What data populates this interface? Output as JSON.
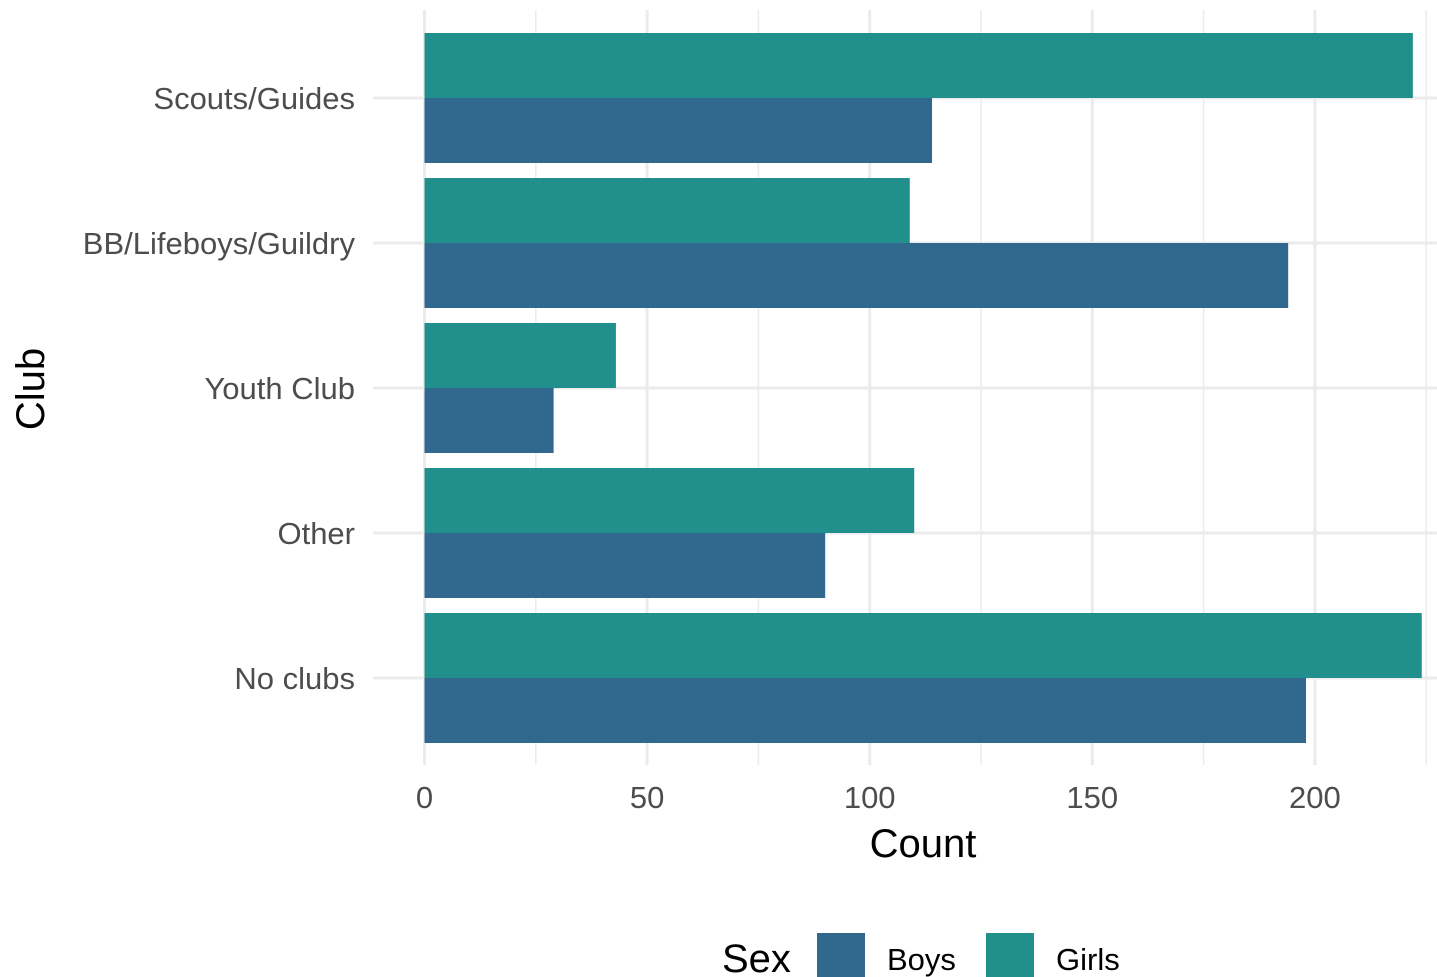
{
  "chart_data": {
    "type": "bar",
    "orientation": "horizontal",
    "categories": [
      "Scouts/Guides",
      "BB/Lifeboys/Guildry",
      "Youth Club",
      "Other",
      "No clubs"
    ],
    "series": [
      {
        "name": "Girls",
        "color": "#21908c",
        "values": [
          222,
          109,
          43,
          110,
          224
        ]
      },
      {
        "name": "Boys",
        "color": "#31688e",
        "values": [
          114,
          194,
          29,
          90,
          198
        ]
      }
    ],
    "xlabel": "Count",
    "ylabel": "Club",
    "xlim": [
      0,
      225
    ],
    "x_ticks": [
      0,
      50,
      100,
      150,
      200
    ],
    "grid": true,
    "legend": {
      "title": "Sex",
      "position": "bottom",
      "items": [
        {
          "label": "Boys",
          "color": "#31688e"
        },
        {
          "label": "Girls",
          "color": "#21908c"
        }
      ]
    }
  }
}
